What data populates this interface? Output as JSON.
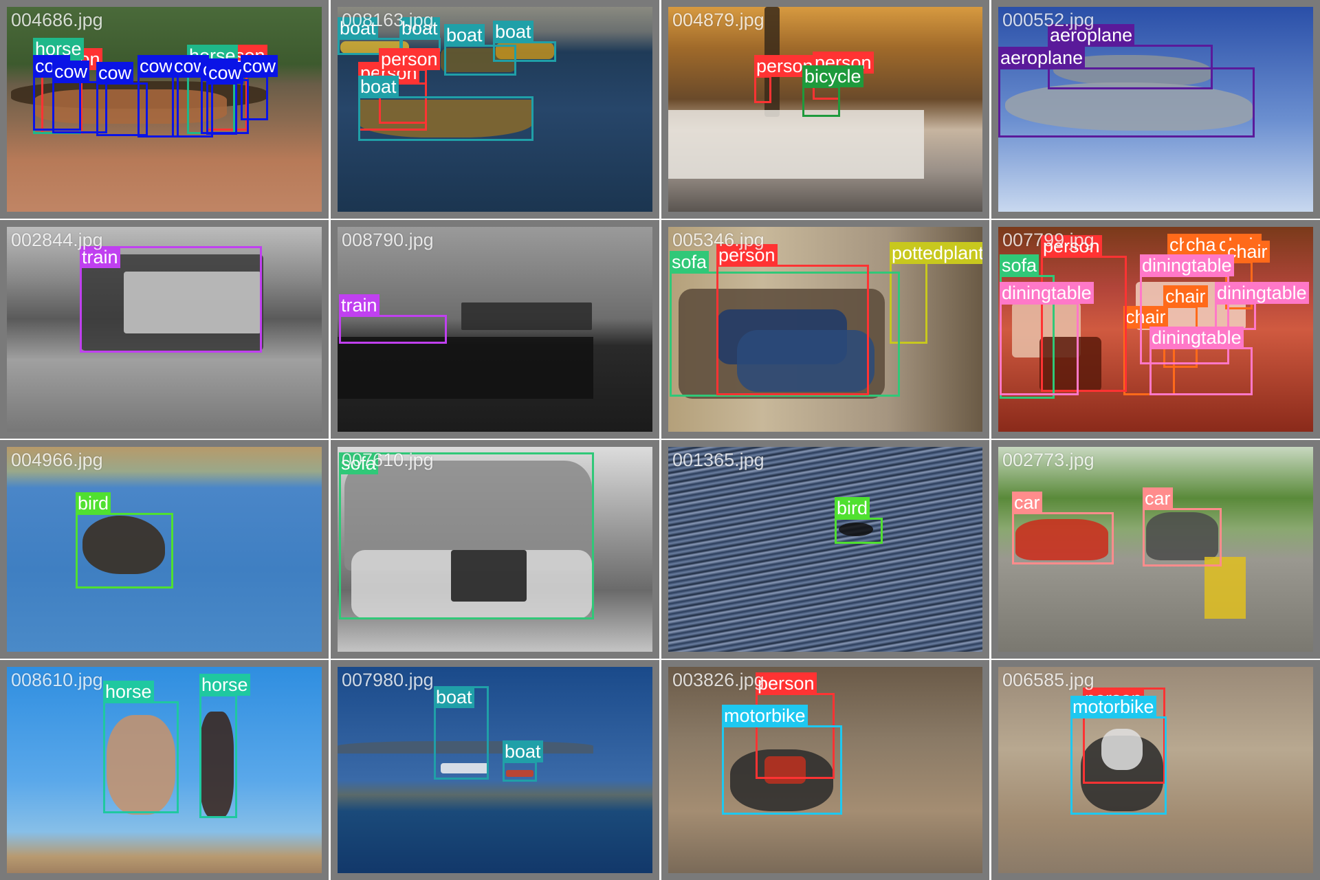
{
  "grid": {
    "tiles": [
      {
        "filename": "004686.jpg",
        "scene": "farm",
        "detections": [
          {
            "label": "person",
            "color": "#ff3333"
          },
          {
            "label": "person",
            "color": "#ff3333"
          },
          {
            "label": "horse",
            "color": "#1fb88a"
          },
          {
            "label": "horse",
            "color": "#1fb88a"
          },
          {
            "label": "cow",
            "color": "#0a14e6"
          },
          {
            "label": "cow",
            "color": "#0a14e6"
          },
          {
            "label": "cow",
            "color": "#0a14e6"
          },
          {
            "label": "cow",
            "color": "#0a14e6"
          },
          {
            "label": "cow",
            "color": "#0a14e6"
          },
          {
            "label": "cow",
            "color": "#0a14e6"
          },
          {
            "label": "cow",
            "color": "#0a14e6"
          },
          {
            "label": "cow",
            "color": "#0a14e6"
          }
        ]
      },
      {
        "filename": "008163.jpg",
        "scene": "harbor",
        "detections": [
          {
            "label": "boat",
            "color": "#20a0a8"
          },
          {
            "label": "boat",
            "color": "#20a0a8"
          },
          {
            "label": "boat",
            "color": "#20a0a8"
          },
          {
            "label": "boat",
            "color": "#20a0a8"
          },
          {
            "label": "person",
            "color": "#ff3333"
          },
          {
            "label": "person",
            "color": "#ff3333"
          },
          {
            "label": "boat",
            "color": "#20a0a8"
          }
        ]
      },
      {
        "filename": "004879.jpg",
        "scene": "snowpark",
        "detections": [
          {
            "label": "person",
            "color": "#ff3333"
          },
          {
            "label": "person",
            "color": "#ff3333"
          },
          {
            "label": "bicycle",
            "color": "#1e9a3c"
          }
        ]
      },
      {
        "filename": "000552.jpg",
        "scene": "sky",
        "detections": [
          {
            "label": "aeroplane",
            "color": "#5a1a9a"
          },
          {
            "label": "aeroplane",
            "color": "#5a1a9a"
          }
        ]
      },
      {
        "filename": "002844.jpg",
        "scene": "trainbw",
        "detections": [
          {
            "label": "train",
            "color": "#c040f0"
          }
        ]
      },
      {
        "filename": "008790.jpg",
        "scene": "landbw",
        "detections": [
          {
            "label": "train",
            "color": "#c040f0"
          }
        ]
      },
      {
        "filename": "005346.jpg",
        "scene": "living",
        "detections": [
          {
            "label": "pottedplant",
            "color": "#c8c81e"
          },
          {
            "label": "sofa",
            "color": "#30c878"
          },
          {
            "label": "person",
            "color": "#ff3333"
          }
        ]
      },
      {
        "filename": "007799.jpg",
        "scene": "restaurant",
        "detections": [
          {
            "label": "chair",
            "color": "#ff6a1a"
          },
          {
            "label": "chair",
            "color": "#ff6a1a"
          },
          {
            "label": "chair",
            "color": "#ff6a1a"
          },
          {
            "label": "chair",
            "color": "#ff6a1a"
          },
          {
            "label": "chair",
            "color": "#ff6a1a"
          },
          {
            "label": "chair",
            "color": "#ff6a1a"
          },
          {
            "label": "person",
            "color": "#ff3333"
          },
          {
            "label": "sofa",
            "color": "#30c878"
          },
          {
            "label": "diningtable",
            "color": "#ff78c8"
          },
          {
            "label": "diningtable",
            "color": "#ff78c8"
          },
          {
            "label": "diningtable",
            "color": "#ff78c8"
          },
          {
            "label": "diningtable",
            "color": "#ff78c8"
          }
        ]
      },
      {
        "filename": "004966.jpg",
        "scene": "water",
        "detections": [
          {
            "label": "bird",
            "color": "#50e030"
          }
        ]
      },
      {
        "filename": "007610.jpg",
        "scene": "couch",
        "detections": [
          {
            "label": "sofa",
            "color": "#30c878"
          }
        ]
      },
      {
        "filename": "001365.jpg",
        "scene": "ripples",
        "detections": [
          {
            "label": "bird",
            "color": "#50e030"
          }
        ]
      },
      {
        "filename": "002773.jpg",
        "scene": "road",
        "detections": [
          {
            "label": "car",
            "color": "#ff8c8c"
          },
          {
            "label": "car",
            "color": "#ff8c8c"
          }
        ]
      },
      {
        "filename": "008610.jpg",
        "scene": "sky2",
        "detections": [
          {
            "label": "horse",
            "color": "#1fc8a0"
          },
          {
            "label": "horse",
            "color": "#1fc8a0"
          }
        ]
      },
      {
        "filename": "007980.jpg",
        "scene": "lake",
        "detections": [
          {
            "label": "boat",
            "color": "#20a0a8"
          },
          {
            "label": "boat",
            "color": "#20a0a8"
          }
        ]
      },
      {
        "filename": "003826.jpg",
        "scene": "dirt",
        "detections": [
          {
            "label": "person",
            "color": "#ff3333"
          },
          {
            "label": "motorbike",
            "color": "#1ec8f0"
          }
        ]
      },
      {
        "filename": "006585.jpg",
        "scene": "dirt2",
        "detections": [
          {
            "label": "person",
            "color": "#ff3333"
          },
          {
            "label": "motorbike",
            "color": "#1ec8f0"
          }
        ]
      }
    ]
  }
}
